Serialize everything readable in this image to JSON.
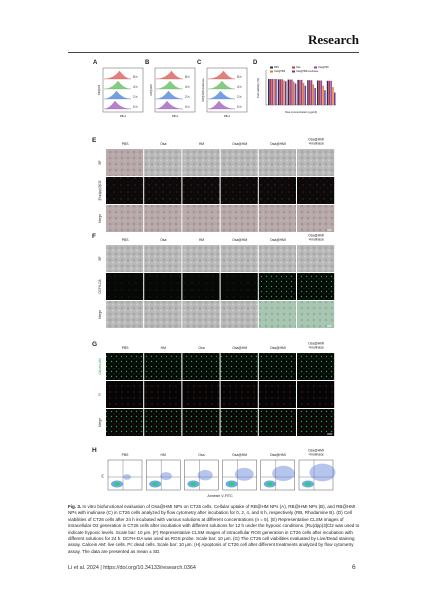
{
  "header": {
    "journal": "Research"
  },
  "figure": {
    "flow_panels": [
      {
        "label": "A",
        "y_label": "RB@HM",
        "x_label": "RB-A",
        "times": [
          "8 h",
          "4 h",
          "2 h",
          "0 h"
        ]
      },
      {
        "label": "B",
        "y_label": "RB@HMI",
        "x_label": "RB-A",
        "times": [
          "8 h",
          "4 h",
          "2 h",
          "0 h"
        ]
      },
      {
        "label": "C",
        "y_label": "RB@HMI+Inulinase",
        "x_label": "RB-A",
        "times": [
          "8 h",
          "4 h",
          "2 h",
          "0 h"
        ]
      }
    ],
    "viability": {
      "label": "D",
      "y_label": "Cell viability (%)",
      "x_label": "Osa concentration (µg/ml)",
      "legend": [
        "PBS",
        "Osa",
        "Osa@HM",
        "Osa@HMI",
        "Osa@HMI+Inulinase"
      ]
    },
    "image_panels": [
      {
        "label": "E",
        "columns": [
          [
            "PBS"
          ],
          [
            "Osa"
          ],
          [
            "HM"
          ],
          [
            "Osa@HM"
          ],
          [
            "Osa@HMI"
          ],
          [
            "Osa@HMI",
            "+Inulinase"
          ]
        ],
        "rows": [
          "BF",
          "[Ru(dpp)3]Cl2",
          "Merge"
        ]
      },
      {
        "label": "F",
        "columns": [
          [
            "PBS"
          ],
          [
            "Osa"
          ],
          [
            "HM"
          ],
          [
            "Osa@HM"
          ],
          [
            "Osa@HMI"
          ],
          [
            "Osa@HMI",
            "+Inulinase"
          ]
        ],
        "rows": [
          "BF",
          "DCFH-DA",
          "Merge"
        ]
      },
      {
        "label": "G",
        "columns": [
          [
            "PBS"
          ],
          [
            "HM"
          ],
          [
            "Osa"
          ],
          [
            "Osa@HM"
          ],
          [
            "Osa@HMI"
          ],
          [
            "Osa@HMI",
            "+Inulinase"
          ]
        ],
        "rows": [
          "Calcein-AM",
          "PI",
          "Merge"
        ]
      }
    ],
    "flow_apoptosis": {
      "label": "H",
      "columns": [
        [
          "PBS"
        ],
        [
          "HM"
        ],
        [
          "Osa"
        ],
        [
          "Osa@HM"
        ],
        [
          "Osa@HMI"
        ],
        [
          "Osa@HMI",
          "+Inulinase"
        ]
      ],
      "y_label": "PI",
      "x_label": "Annexin V-FITC"
    }
  },
  "caption": {
    "label": "Fig. 3.",
    "text": "In vitro biofunctional evaluation of Osa@HMI NPs on CT26 cells. Cellular uptake of RB@HM NPs (A), RB@HMI NPs (B), and RB@HMI NPs with inulinase (C) in CT26 cells analyzed by flow cytometry after incubation for 0, 2, 4, and 8 h, respectively (RB, Rhodamine B). (D) Cell viabilities of CT26 cells after 24 h incubated with various solutions at different concentrations (n = 5). (E) Representative CLSM images of intracellular O2 generation in CT26 cells after incubation with different solutions for 12 h under the hypoxic conditions. [Ru(dpp)3]Cl2 was used to indicate hypoxic levels. Scale bar: 10 μm. (F) Representative CLSM images of intracellular ROS generation in CT26 cells after incubation with different solutions for 24 h. DCFH-DA was used as ROS probe. Scale bar: 10 μm. (G) The CT26 cell viabilities evaluated by Live/Dead staining assay. Calcein AM: live cells. PI: dead cells. Scale bar: 10 μm. (H) Apoptosis of CT26 cell after different treatments analyzed by flow cytometry assay. The data are presented as mean ± SD."
  },
  "footer": {
    "citation": "Li et al. 2024 | https://doi.org/10.34133/research.0364",
    "page": "6"
  }
}
